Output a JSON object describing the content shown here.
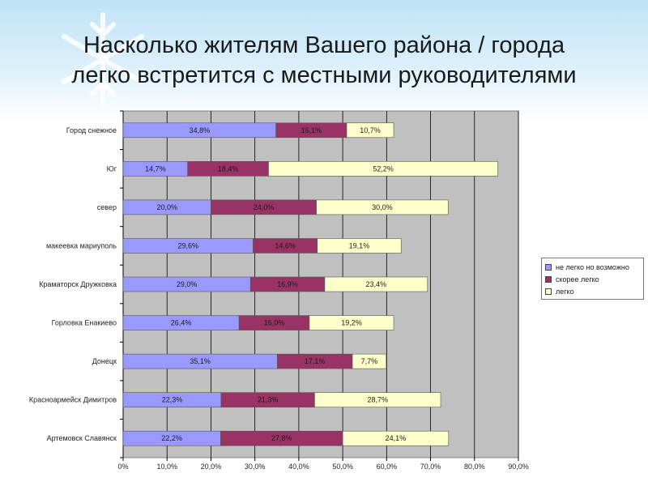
{
  "title_lines": [
    "Насколько жителям Вашего района / города",
    "легко встретится с местными руководителями"
  ],
  "colors": {
    "background": "#ffffff",
    "plot_background": "#c0c0c0",
    "series": [
      "#9999ff",
      "#993366",
      "#ffffcc"
    ]
  },
  "chart_data": {
    "type": "bar",
    "orientation": "horizontal",
    "stacked": true,
    "categories": [
      "Город снежное",
      "Юг",
      "север",
      "макеевка мариуполь",
      "Краматорск Дружковка",
      "Горловка Енакиево",
      "Донецк",
      "Красноармейск Димитров",
      "Артемовск Славянск"
    ],
    "series": [
      {
        "name": "не легко но возможно",
        "values": [
          34.8,
          14.7,
          20.0,
          29.6,
          29.0,
          26.4,
          35.1,
          22.3,
          22.2
        ],
        "labels": [
          "34,8%",
          "14,7%",
          "20,0%",
          "29,6%",
          "29,0%",
          "26,4%",
          "35,1%",
          "22,3%",
          "22,2%"
        ]
      },
      {
        "name": "скорее легко",
        "values": [
          16.1,
          18.4,
          24.0,
          14.6,
          16.9,
          16.0,
          17.1,
          21.3,
          27.8
        ],
        "labels": [
          "16,1%",
          "18,4%",
          "24,0%",
          "14,6%",
          "16,9%",
          "16,0%",
          "17,1%",
          "21,3%",
          "27,8%"
        ]
      },
      {
        "name": "легко",
        "values": [
          10.7,
          52.2,
          30.0,
          19.1,
          23.4,
          19.2,
          7.7,
          28.7,
          24.1
        ],
        "labels": [
          "10,7%",
          "52,2%",
          "30,0%",
          "19,1%",
          "23,4%",
          "19,2%",
          "7,7%",
          "28,7%",
          "24,1%"
        ]
      }
    ],
    "xlim": [
      0,
      90
    ],
    "x_ticks": [
      "0%",
      "10,0%",
      "20,0%",
      "30,0%",
      "40,0%",
      "50,0%",
      "60,0%",
      "70,0%",
      "80,0%",
      "90,0%"
    ],
    "grid": true,
    "legend_position": "right"
  }
}
